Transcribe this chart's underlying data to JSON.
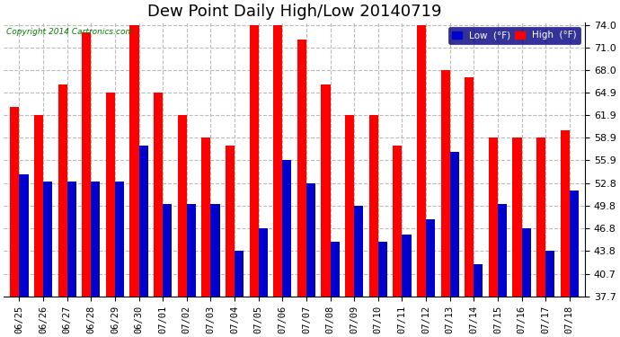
{
  "title": "Dew Point Daily High/Low 20140719",
  "copyright": "Copyright 2014 Cartronics.com",
  "dates": [
    "06/25",
    "06/26",
    "06/27",
    "06/28",
    "06/29",
    "06/30",
    "07/01",
    "07/02",
    "07/03",
    "07/04",
    "07/05",
    "07/06",
    "07/07",
    "07/08",
    "07/09",
    "07/10",
    "07/11",
    "07/12",
    "07/13",
    "07/14",
    "07/15",
    "07/16",
    "07/17",
    "07/18"
  ],
  "high": [
    63.0,
    61.9,
    66.0,
    73.0,
    64.9,
    74.0,
    64.9,
    61.9,
    59.0,
    57.9,
    74.0,
    74.0,
    72.0,
    66.0,
    61.9,
    61.9,
    57.9,
    74.0,
    68.0,
    67.0,
    59.0,
    59.0,
    59.0,
    59.9
  ],
  "low": [
    54.0,
    53.0,
    53.0,
    53.0,
    53.0,
    57.9,
    50.0,
    50.0,
    50.0,
    43.8,
    46.8,
    55.9,
    52.8,
    45.0,
    49.8,
    45.0,
    46.0,
    48.0,
    57.0,
    42.0,
    50.0,
    46.8,
    43.8,
    51.8
  ],
  "ymin": 37.7,
  "ymax": 74.0,
  "yticks": [
    37.7,
    40.7,
    43.8,
    46.8,
    49.8,
    52.8,
    55.9,
    58.9,
    61.9,
    64.9,
    68.0,
    71.0,
    74.0
  ],
  "high_color": "#FF0000",
  "low_color": "#0000CC",
  "bg_color": "#FFFFFF",
  "grid_color": "#BBBBBB",
  "title_fontsize": 13,
  "tick_fontsize": 8,
  "legend_low_label": "Low  (°F)",
  "legend_high_label": "High  (°F)"
}
